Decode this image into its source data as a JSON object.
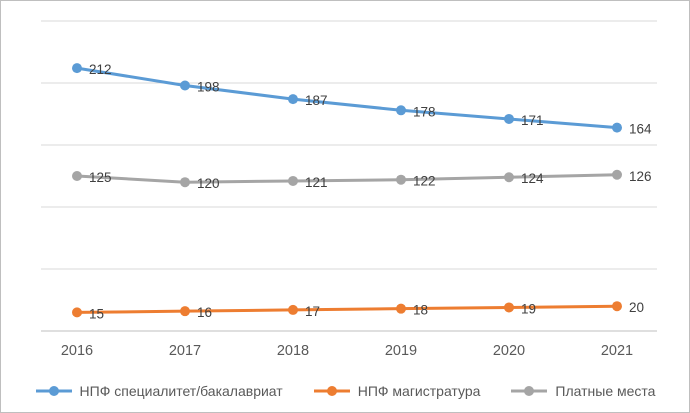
{
  "chart_data": {
    "type": "line",
    "title": "",
    "xlabel": "",
    "ylabel": "",
    "categories": [
      "2016",
      "2017",
      "2018",
      "2019",
      "2020",
      "2021"
    ],
    "series": [
      {
        "name": "НПФ специалитет/бакалавриат",
        "values": [
          212,
          198,
          187,
          178,
          171,
          164
        ],
        "color": "#5B9BD5"
      },
      {
        "name": "НПФ магистратура",
        "values": [
          15,
          16,
          17,
          18,
          19,
          20
        ],
        "color": "#ED7D31"
      },
      {
        "name": "Платные места",
        "values": [
          125,
          120,
          121,
          122,
          124,
          126
        ],
        "color": "#A5A5A5"
      }
    ],
    "ylim": [
      0,
      250
    ],
    "grid_step": 50,
    "grid": true,
    "data_labels_shown": true,
    "legend_position": "bottom",
    "gridline_color": "#D9D9D9",
    "axis_color": "#BFBFBF",
    "label_color": "#404040",
    "tick_color": "#595959",
    "border_color": "#BFBFBF"
  }
}
